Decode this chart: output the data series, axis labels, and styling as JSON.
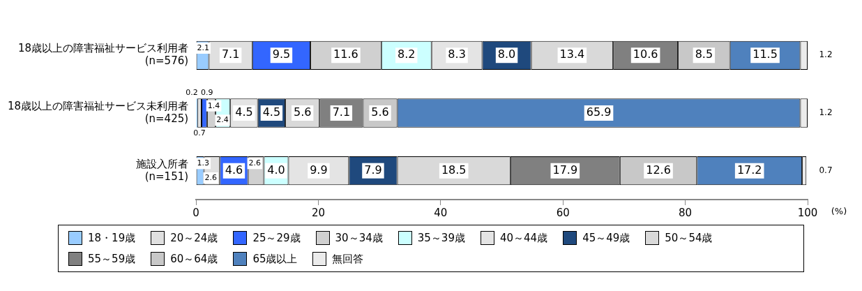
{
  "chart_data": {
    "type": "bar",
    "orientation": "horizontal",
    "stacked": true,
    "categories": [
      "18歳以上の障害福祉サービス利用者\n(n=576)",
      "18歳以上の障害福祉サービス未利用者\n(n=425)",
      "施設入所者\n(n=151)"
    ],
    "series": [
      {
        "name": "18・19歳",
        "color": "#99ccff",
        "values": [
          2.1,
          0.2,
          1.3
        ],
        "value_labels": [
          "2.1",
          "0.2",
          "1.3"
        ]
      },
      {
        "name": "20～24歳",
        "color": "#e0e0e0",
        "values": [
          7.1,
          0.7,
          2.6
        ],
        "value_labels": [
          "7.1",
          "0.7",
          "2.6"
        ]
      },
      {
        "name": "25～29歳",
        "color": "#3366ff",
        "values": [
          9.5,
          0.9,
          4.6
        ],
        "value_labels": [
          "9.5",
          "0.9",
          "4.6"
        ]
      },
      {
        "name": "30～34歳",
        "color": "#d0d0d0",
        "values": [
          11.6,
          1.4,
          2.6
        ],
        "value_labels": [
          "11.6",
          "1.4",
          "2.6"
        ]
      },
      {
        "name": "35～39歳",
        "color": "#ccffff",
        "values": [
          8.2,
          2.4,
          4.0
        ],
        "value_labels": [
          "8.2",
          "2.4",
          "4.0"
        ]
      },
      {
        "name": "40～44歳",
        "color": "#e4e4e4",
        "values": [
          8.3,
          4.5,
          9.9
        ],
        "value_labels": [
          "8.3",
          "4.5",
          "9.9"
        ]
      },
      {
        "name": "45～49歳",
        "color": "#1f497d",
        "values": [
          8.0,
          4.5,
          7.9
        ],
        "value_labels": [
          "8.0",
          "4.5",
          "7.9"
        ]
      },
      {
        "name": "50～54歳",
        "color": "#d9d9d9",
        "values": [
          13.4,
          5.6,
          18.5
        ],
        "value_labels": [
          "13.4",
          "5.6",
          "18.5"
        ]
      },
      {
        "name": "55～59歳",
        "color": "#808080",
        "values": [
          10.6,
          7.1,
          17.9
        ],
        "value_labels": [
          "10.6",
          "7.1",
          "17.9"
        ]
      },
      {
        "name": "60～64歳",
        "color": "#c8c8c8",
        "values": [
          8.5,
          5.6,
          12.6
        ],
        "value_labels": [
          "8.5",
          "5.6",
          "12.6"
        ]
      },
      {
        "name": "65歳以上",
        "color": "#4f81bd",
        "values": [
          11.5,
          65.9,
          17.2
        ],
        "value_labels": [
          "11.5",
          "65.9",
          "17.2"
        ]
      },
      {
        "name": "無回答",
        "color": "#ebebeb",
        "values": [
          1.2,
          1.2,
          0.7
        ],
        "value_labels": [
          "1.2",
          "1.2",
          "0.7"
        ]
      }
    ],
    "xlim": [
      0,
      100
    ],
    "xticks": [
      0,
      20,
      40,
      60,
      80,
      100
    ],
    "annotations": [
      "(%)"
    ],
    "legend": "bottom"
  }
}
